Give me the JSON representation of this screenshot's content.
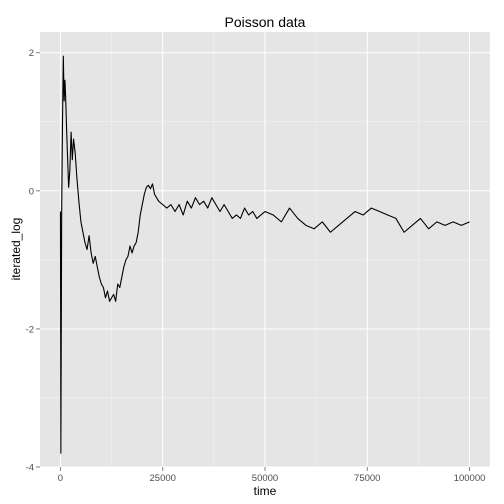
{
  "chart_data": {
    "type": "line",
    "title": "Poisson data",
    "xlabel": "time",
    "ylabel": "iterated_log",
    "xlim": [
      -5000,
      105000
    ],
    "ylim": [
      -4,
      2.3
    ],
    "x_ticks": [
      0,
      25000,
      50000,
      75000,
      100000
    ],
    "y_ticks": [
      -4,
      -2,
      0,
      2
    ],
    "x_tick_labels": [
      "0",
      "25000",
      "50000",
      "75000",
      "100000"
    ],
    "y_tick_labels": [
      "-4",
      "-2",
      "0",
      "2"
    ],
    "grid": true,
    "panel_color": "#e5e5e5",
    "grid_color": "#ffffff",
    "line_color": "#000000",
    "series": [
      {
        "x": [
          1,
          100,
          300,
          500,
          700,
          900,
          1100,
          1300,
          1500,
          1700,
          2000,
          2300,
          2600,
          2900,
          3200,
          3600,
          4000,
          4500,
          5000,
          5500,
          6000,
          6500,
          7000,
          7500,
          8000,
          8500,
          9000,
          9500,
          10000,
          10500,
          11000,
          11500,
          12000,
          12500,
          13000,
          13500,
          14000,
          14500,
          15000,
          15500,
          16000,
          16500,
          17000,
          17500,
          18000,
          18500,
          19000,
          19500,
          20000,
          20500,
          21000,
          21500,
          22000,
          22500,
          23000,
          24000,
          25000,
          26000,
          27000,
          28000,
          29000,
          30000,
          31000,
          32000,
          33000,
          34000,
          35000,
          36000,
          37000,
          38000,
          39000,
          40000,
          41000,
          42000,
          43000,
          44000,
          45000,
          46000,
          47000,
          48000,
          49000,
          50000,
          52000,
          54000,
          56000,
          58000,
          60000,
          62000,
          64000,
          66000,
          68000,
          70000,
          72000,
          74000,
          76000,
          78000,
          80000,
          82000,
          84000,
          86000,
          88000,
          90000,
          92000,
          94000,
          96000,
          98000,
          100000
        ],
        "y": [
          -0.3,
          -3.8,
          -0.3,
          1.0,
          1.95,
          1.3,
          1.6,
          1.3,
          0.9,
          0.55,
          0.05,
          0.3,
          0.85,
          0.45,
          0.75,
          0.55,
          0.2,
          -0.15,
          -0.45,
          -0.6,
          -0.75,
          -0.85,
          -0.65,
          -0.9,
          -1.05,
          -0.95,
          -1.1,
          -1.25,
          -1.35,
          -1.4,
          -1.55,
          -1.45,
          -1.6,
          -1.55,
          -1.5,
          -1.6,
          -1.35,
          -1.4,
          -1.25,
          -1.1,
          -1.0,
          -0.95,
          -0.8,
          -0.9,
          -0.8,
          -0.75,
          -0.6,
          -0.35,
          -0.2,
          -0.05,
          0.05,
          0.08,
          0.03,
          0.1,
          -0.05,
          -0.15,
          -0.2,
          -0.25,
          -0.2,
          -0.3,
          -0.2,
          -0.35,
          -0.15,
          -0.25,
          -0.1,
          -0.2,
          -0.15,
          -0.25,
          -0.1,
          -0.2,
          -0.3,
          -0.2,
          -0.3,
          -0.4,
          -0.35,
          -0.4,
          -0.25,
          -0.35,
          -0.3,
          -0.4,
          -0.35,
          -0.3,
          -0.35,
          -0.45,
          -0.25,
          -0.4,
          -0.5,
          -0.55,
          -0.45,
          -0.6,
          -0.5,
          -0.4,
          -0.3,
          -0.35,
          -0.25,
          -0.3,
          -0.35,
          -0.4,
          -0.6,
          -0.5,
          -0.4,
          -0.55,
          -0.45,
          -0.5,
          -0.45,
          -0.5,
          -0.45
        ]
      }
    ]
  }
}
